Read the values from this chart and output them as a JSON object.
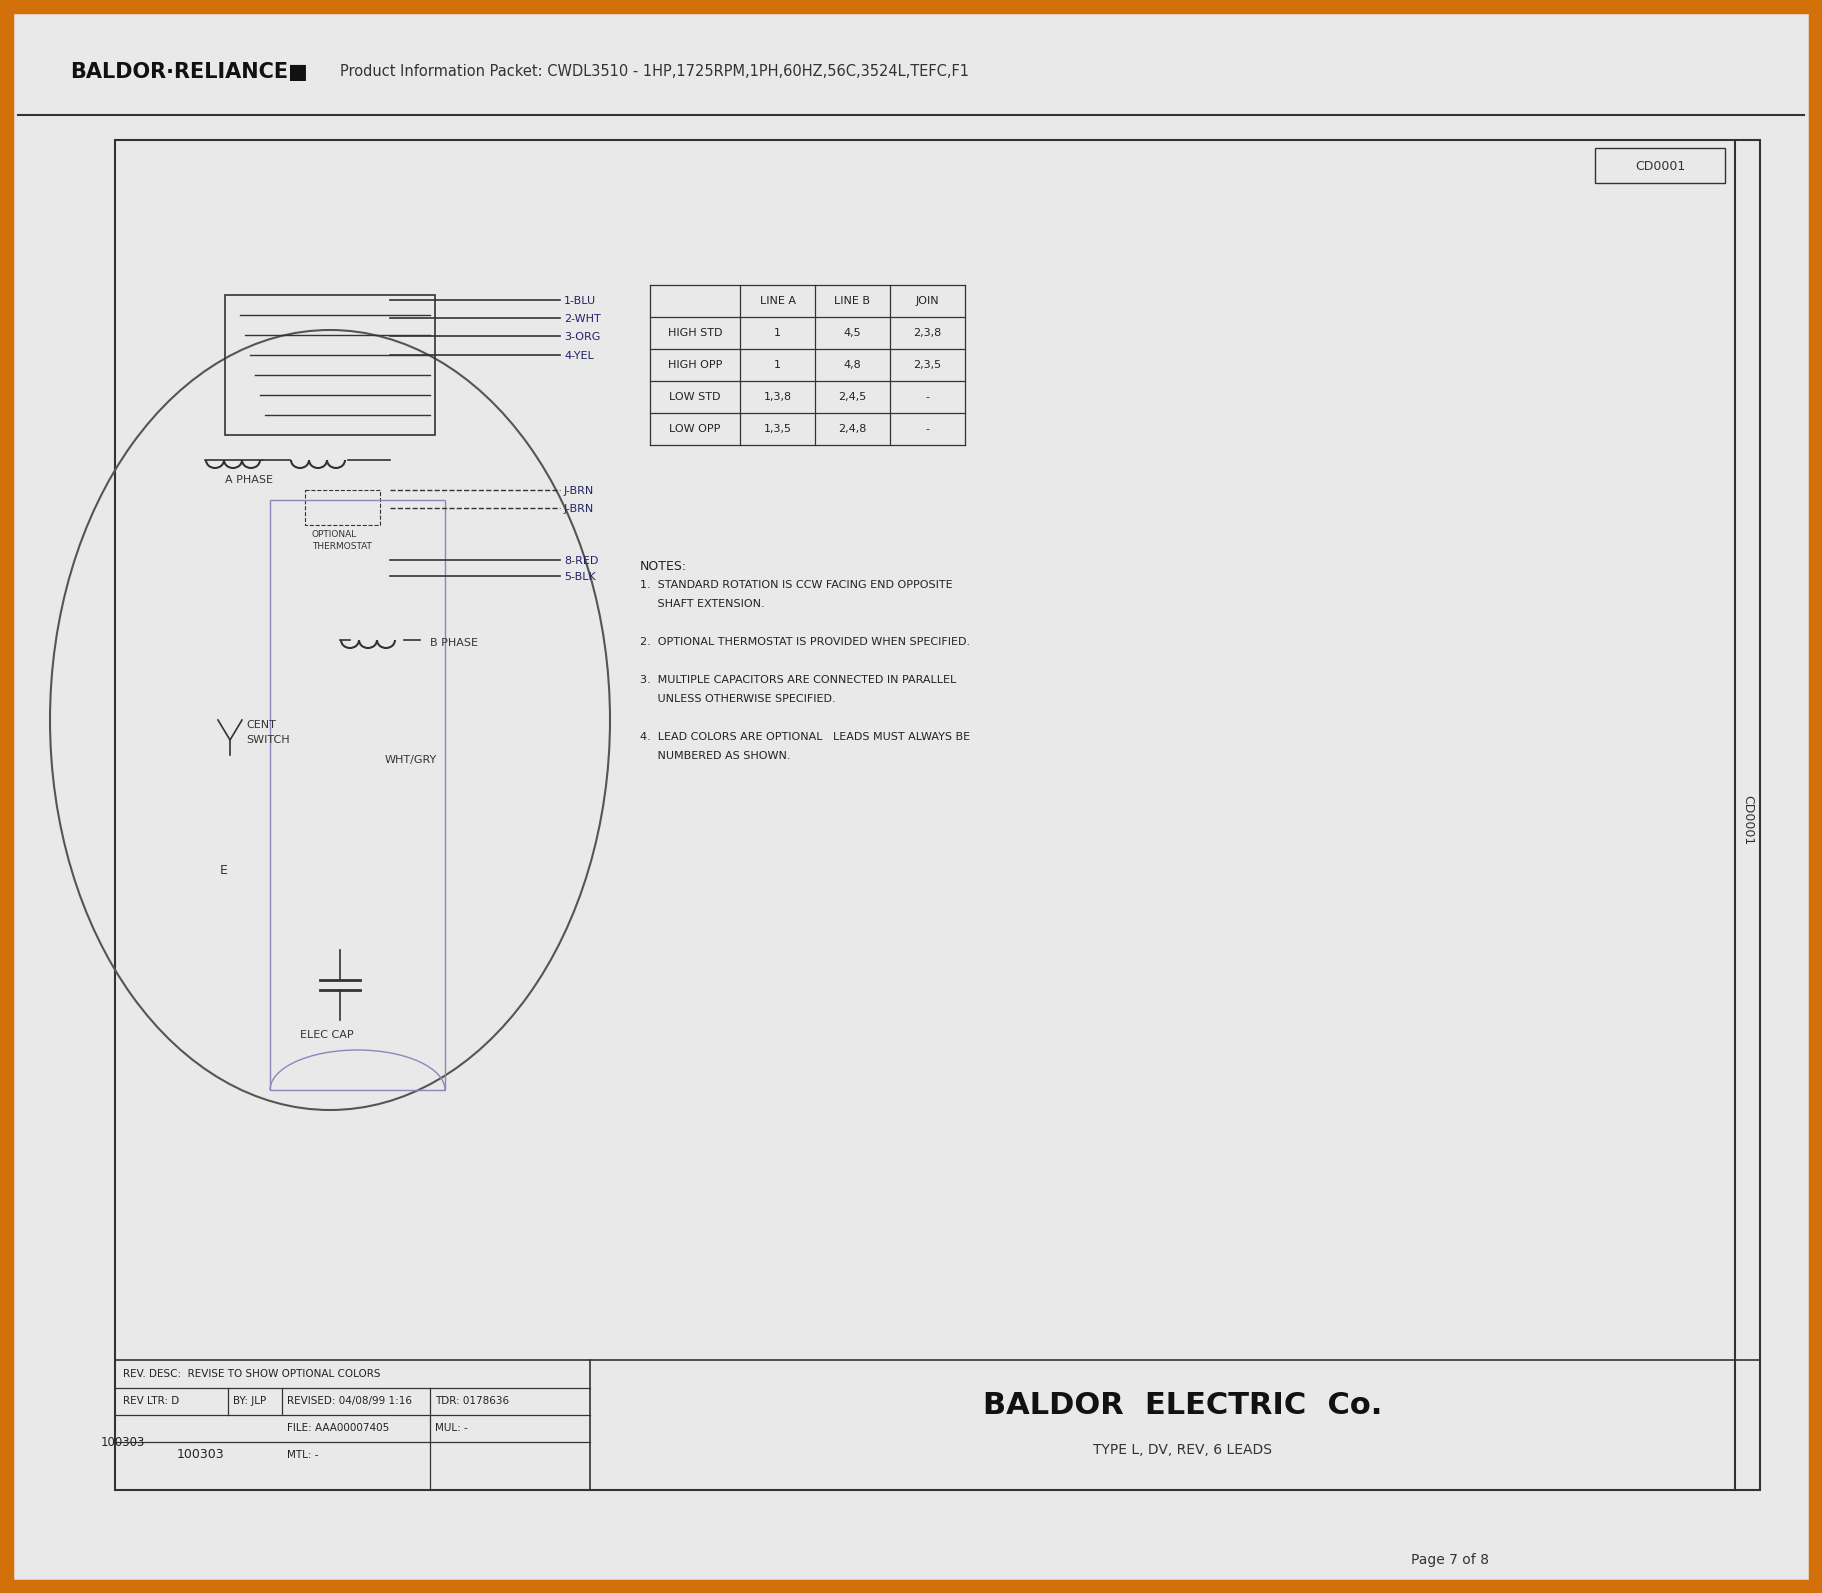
{
  "bg_color": "#e8e8e8",
  "inner_bg": "#e9e9e9",
  "border_orange": "#d4700a",
  "border_dark": "#444444",
  "doc_number": "CD0001",
  "header_brand": "BALDOR·RELIANCE■",
  "header_info": "Product Information Packet: CWDL3510 - 1HP,1725RPM,1PH,60HZ,56C,3524L,TEFC,F1",
  "title_main": "BALDOR  ELECTRIC  Co.",
  "title_sub": "TYPE L, DV, REV, 6 LEADS",
  "footer_desc": "REV. DESC:  REVISE TO SHOW OPTIONAL COLORS",
  "footer_rev": "REV LTR: D",
  "footer_by": "BY: JLP",
  "footer_revised": "REVISED: 04/08/99 1:16",
  "footer_tdr": "TDR: 0178636",
  "footer_file": "FILE: AAA00007405",
  "footer_mul": "MUL: -",
  "footer_mtl": "MTL: -",
  "footer_num": "100303",
  "page_text": "Page 7 of 8",
  "table_headers": [
    "",
    "LINE A",
    "LINE B",
    "JOIN"
  ],
  "table_rows": [
    [
      "HIGH STD",
      "1",
      "4,5",
      "2,3,8"
    ],
    [
      "HIGH OPP",
      "1",
      "4,8",
      "2,3,5"
    ],
    [
      "LOW STD",
      "1,3,8",
      "2,4,5",
      "-"
    ],
    [
      "LOW OPP",
      "1,3,5",
      "2,4,8",
      "-"
    ]
  ],
  "notes_title": "NOTES:",
  "notes": [
    "1.  STANDARD ROTATION IS CCW FACING END OPPOSITE",
    "     SHAFT EXTENSION.",
    "",
    "2.  OPTIONAL THERMOSTAT IS PROVIDED WHEN SPECIFIED.",
    "",
    "3.  MULTIPLE CAPACITORS ARE CONNECTED IN PARALLEL",
    "     UNLESS OTHERWISE SPECIFIED.",
    "",
    "4.  LEAD COLORS ARE OPTIONAL   LEADS MUST ALWAYS BE",
    "     NUMBERED AS SHOWN."
  ],
  "wire_labels": [
    "1-BLU",
    "2-WHT",
    "3-ORG",
    "4-YEL",
    "J-BRN",
    "J-BRN",
    "8-RED",
    "5-BLK"
  ],
  "line_color": "#333333",
  "wire_color_blue": "#4444aa",
  "wire_color_purple": "#884488"
}
